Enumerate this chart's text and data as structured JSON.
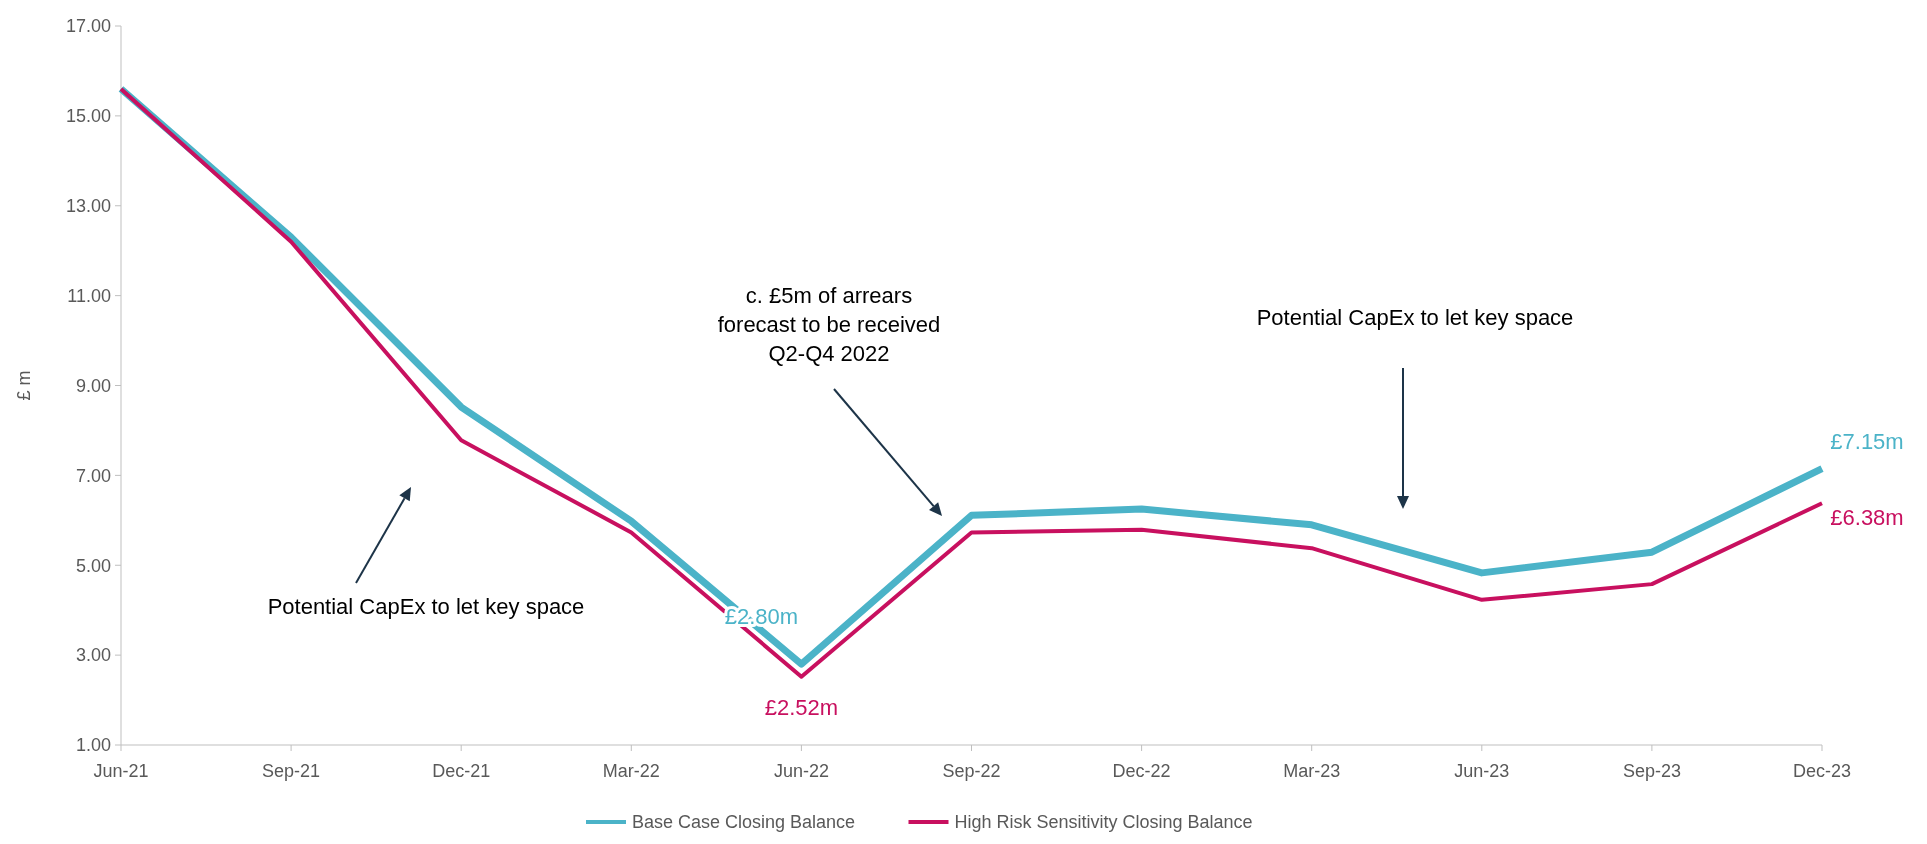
{
  "chart_data": {
    "type": "line",
    "ylabel": "£ m",
    "categories": [
      "Jun-21",
      "Sep-21",
      "Dec-21",
      "Mar-22",
      "Jun-22",
      "Sep-22",
      "Dec-22",
      "Mar-23",
      "Jun-23",
      "Sep-23",
      "Dec-23"
    ],
    "series": [
      {
        "name": "Base Case Closing Balance",
        "color": "#4bb3c8",
        "values": [
          15.6,
          12.3,
          8.52,
          5.98,
          2.8,
          6.11,
          6.25,
          5.9,
          4.83,
          5.29,
          7.15
        ],
        "value_labels": [
          null,
          null,
          null,
          null,
          "£2.80m",
          null,
          null,
          null,
          null,
          null,
          "£7.15m"
        ]
      },
      {
        "name": "High Risk Sensitivity Closing Balance",
        "color": "#c8105f",
        "values": [
          15.6,
          12.2,
          7.78,
          5.73,
          2.52,
          5.73,
          5.79,
          5.38,
          4.23,
          4.58,
          6.38
        ],
        "value_labels": [
          null,
          null,
          null,
          null,
          "£2.52m",
          null,
          null,
          null,
          null,
          null,
          "£6.38m"
        ]
      }
    ],
    "ylim": [
      1,
      17
    ],
    "yticks": [
      {
        "value": 1,
        "label": "1.00"
      },
      {
        "value": 3,
        "label": "3.00"
      },
      {
        "value": 5,
        "label": "5.00"
      },
      {
        "value": 7,
        "label": "7.00"
      },
      {
        "value": 9,
        "label": "9.00"
      },
      {
        "value": 11,
        "label": "11.00"
      },
      {
        "value": 13,
        "label": "13.00"
      },
      {
        "value": 15,
        "label": "15.00"
      },
      {
        "value": 17,
        "label": "17.00"
      }
    ],
    "annotations": [
      "Potential CapEx to let key space",
      "c. £5m of arrears forecast to be received Q2-Q4 2022",
      "Potential CapEx to let key space"
    ],
    "legend": "bottom",
    "grid": false,
    "marker": "none",
    "line_style": "solid"
  }
}
